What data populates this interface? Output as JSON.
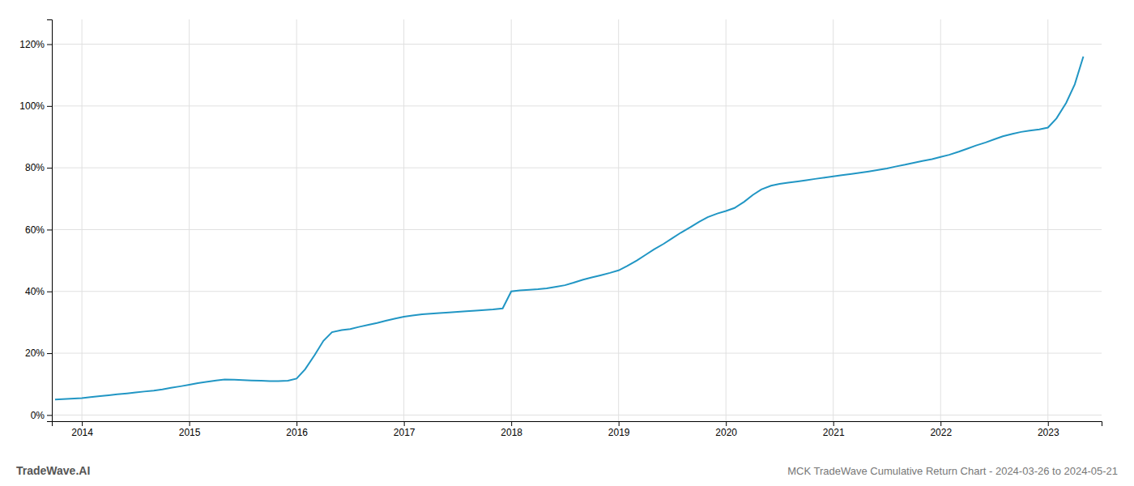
{
  "chart_data": {
    "type": "line",
    "title": "MCK TradeWave Cumulative Return Chart - 2024-03-26 to 2024-05-21",
    "annotations": [
      "TradeWave.AI"
    ],
    "color": "#2196c4",
    "grid": true,
    "xlim": [
      2013.72,
      2023.5
    ],
    "xticks": [
      2014,
      2015,
      2016,
      2017,
      2018,
      2019,
      2020,
      2021,
      2022,
      2023
    ],
    "ylim": [
      -0.02,
      1.28
    ],
    "yticks": [
      {
        "value": 0.0,
        "label": "0%"
      },
      {
        "value": 0.2,
        "label": "20%"
      },
      {
        "value": 0.4,
        "label": "40%"
      },
      {
        "value": 0.6,
        "label": "60%"
      },
      {
        "value": 0.8,
        "label": "80%"
      },
      {
        "value": 1.0,
        "label": "100%"
      },
      {
        "value": 1.2,
        "label": "120%"
      }
    ],
    "x": [
      2013.75,
      2014.0,
      2014.08,
      2014.17,
      2014.25,
      2014.33,
      2014.42,
      2014.5,
      2014.58,
      2014.67,
      2014.75,
      2014.83,
      2014.92,
      2015.0,
      2015.08,
      2015.17,
      2015.25,
      2015.33,
      2015.42,
      2015.5,
      2015.58,
      2015.67,
      2015.75,
      2015.83,
      2015.92,
      2016.0,
      2016.08,
      2016.17,
      2016.25,
      2016.33,
      2016.42,
      2016.5,
      2016.58,
      2016.67,
      2016.75,
      2016.83,
      2016.92,
      2017.0,
      2017.08,
      2017.17,
      2017.25,
      2017.33,
      2017.42,
      2017.5,
      2017.58,
      2017.67,
      2017.75,
      2017.83,
      2017.92,
      2018.0,
      2018.08,
      2018.17,
      2018.25,
      2018.33,
      2018.42,
      2018.5,
      2018.58,
      2018.67,
      2018.75,
      2018.83,
      2018.92,
      2019.0,
      2019.08,
      2019.17,
      2019.25,
      2019.33,
      2019.42,
      2019.5,
      2019.58,
      2019.67,
      2019.75,
      2019.83,
      2019.92,
      2020.0,
      2020.08,
      2020.17,
      2020.25,
      2020.33,
      2020.42,
      2020.5,
      2020.58,
      2020.67,
      2020.75,
      2020.83,
      2020.92,
      2021.0,
      2021.08,
      2021.17,
      2021.25,
      2021.33,
      2021.42,
      2021.5,
      2021.58,
      2021.67,
      2021.75,
      2021.83,
      2021.92,
      2022.0,
      2022.08,
      2022.17,
      2022.25,
      2022.33,
      2022.42,
      2022.5,
      2022.58,
      2022.67,
      2022.75,
      2022.83,
      2022.92,
      2023.0,
      2023.08,
      2023.17,
      2023.25,
      2023.33
    ],
    "values": [
      0.05,
      0.055,
      0.058,
      0.061,
      0.064,
      0.067,
      0.07,
      0.073,
      0.076,
      0.079,
      0.083,
      0.088,
      0.093,
      0.098,
      0.103,
      0.108,
      0.112,
      0.115,
      0.114,
      0.113,
      0.112,
      0.111,
      0.11,
      0.11,
      0.111,
      0.118,
      0.148,
      0.195,
      0.24,
      0.268,
      0.275,
      0.278,
      0.285,
      0.292,
      0.298,
      0.305,
      0.312,
      0.318,
      0.322,
      0.326,
      0.328,
      0.33,
      0.332,
      0.334,
      0.336,
      0.338,
      0.34,
      0.342,
      0.345,
      0.4,
      0.403,
      0.405,
      0.407,
      0.41,
      0.415,
      0.42,
      0.428,
      0.438,
      0.445,
      0.452,
      0.46,
      0.468,
      0.482,
      0.5,
      0.518,
      0.536,
      0.554,
      0.572,
      0.59,
      0.608,
      0.625,
      0.64,
      0.652,
      0.66,
      0.67,
      0.69,
      0.712,
      0.73,
      0.742,
      0.748,
      0.752,
      0.756,
      0.76,
      0.764,
      0.768,
      0.772,
      0.776,
      0.78,
      0.784,
      0.788,
      0.793,
      0.798,
      0.804,
      0.81,
      0.816,
      0.822,
      0.828,
      0.835,
      0.842,
      0.852,
      0.862,
      0.872,
      0.882,
      0.892,
      0.902,
      0.91,
      0.916,
      0.92,
      0.924,
      0.93,
      0.96,
      1.01,
      1.07,
      1.16
    ]
  }
}
